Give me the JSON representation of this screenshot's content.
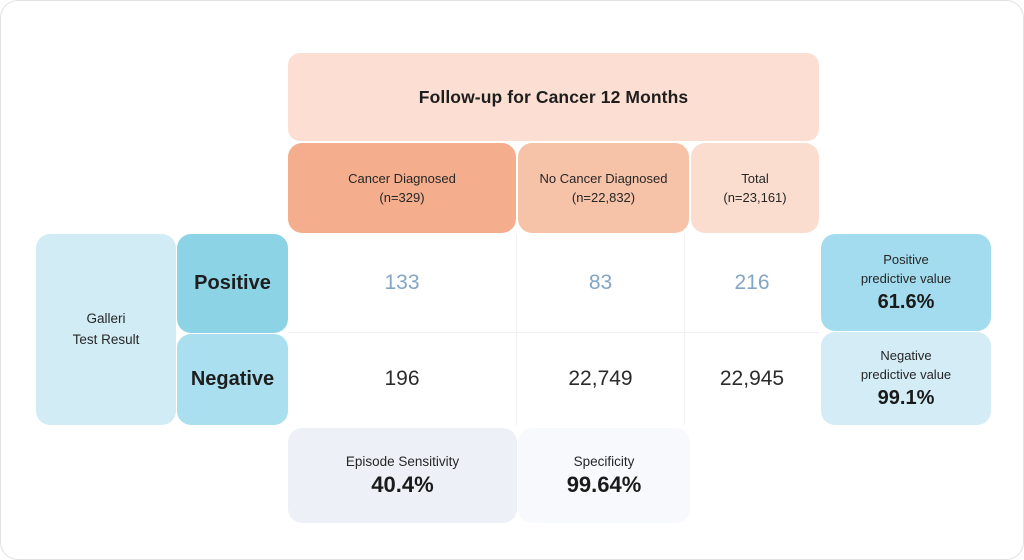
{
  "chart_data": {
    "type": "table",
    "title": "Follow-up for Cancer 12 Months",
    "row_group_label": "Galleri Test Result",
    "columns": [
      "Cancer Diagnosed (n=329)",
      "No Cancer Diagnosed (n=22,832)",
      "Total (n=23,161)"
    ],
    "rows": [
      {
        "label": "Positive",
        "values": [
          133,
          83,
          216
        ]
      },
      {
        "label": "Negative",
        "values": [
          196,
          22749,
          22945
        ]
      }
    ],
    "metrics": {
      "positive_predictive_value": "61.6%",
      "negative_predictive_value": "99.1%",
      "episode_sensitivity": "40.4%",
      "specificity": "99.64%"
    }
  },
  "banner": {
    "title": "Follow-up for Cancer 12 Months"
  },
  "columns": [
    {
      "label": "Cancer Diagnosed",
      "n": "(n=329)"
    },
    {
      "label": "No Cancer Diagnosed",
      "n": "(n=22,832)"
    },
    {
      "label": "Total",
      "n": "(n=23,161)"
    }
  ],
  "row_group": {
    "line1": "Galleri",
    "line2": "Test Result"
  },
  "rows": [
    {
      "label": "Positive",
      "values": [
        "133",
        "83",
        "216"
      ]
    },
    {
      "label": "Negative",
      "values": [
        "196",
        "22,749",
        "22,945"
      ]
    }
  ],
  "predictive_values": [
    {
      "line1": "Positive",
      "line2": "predictive value",
      "value": "61.6%"
    },
    {
      "line1": "Negative",
      "line2": "predictive value",
      "value": "99.1%"
    }
  ],
  "bottom_stats": [
    {
      "label": "Episode Sensitivity",
      "value": "40.4%"
    },
    {
      "label": "Specificity",
      "value": "99.64%"
    }
  ],
  "colors": {
    "banner_bg": "#fcdfd2",
    "col_header_cancer_bg": "#f4ae8e",
    "col_header_nocancer_bg": "#f6c3a9",
    "col_header_total_bg": "#fbddd0",
    "row_group_bg": "#d2ecf6",
    "positive_label_bg": "#8dd3e6",
    "negative_label_bg": "#a9dfee",
    "ppv_bg": "#a3dcee",
    "npv_bg": "#d3ecf5",
    "sensitivity_bg": "#edf1f7",
    "specificity_bg": "#f7f9fc",
    "positive_value_text": "#83a5c6",
    "dark_text": "#222222",
    "cell_border": "#f0f0f0"
  }
}
